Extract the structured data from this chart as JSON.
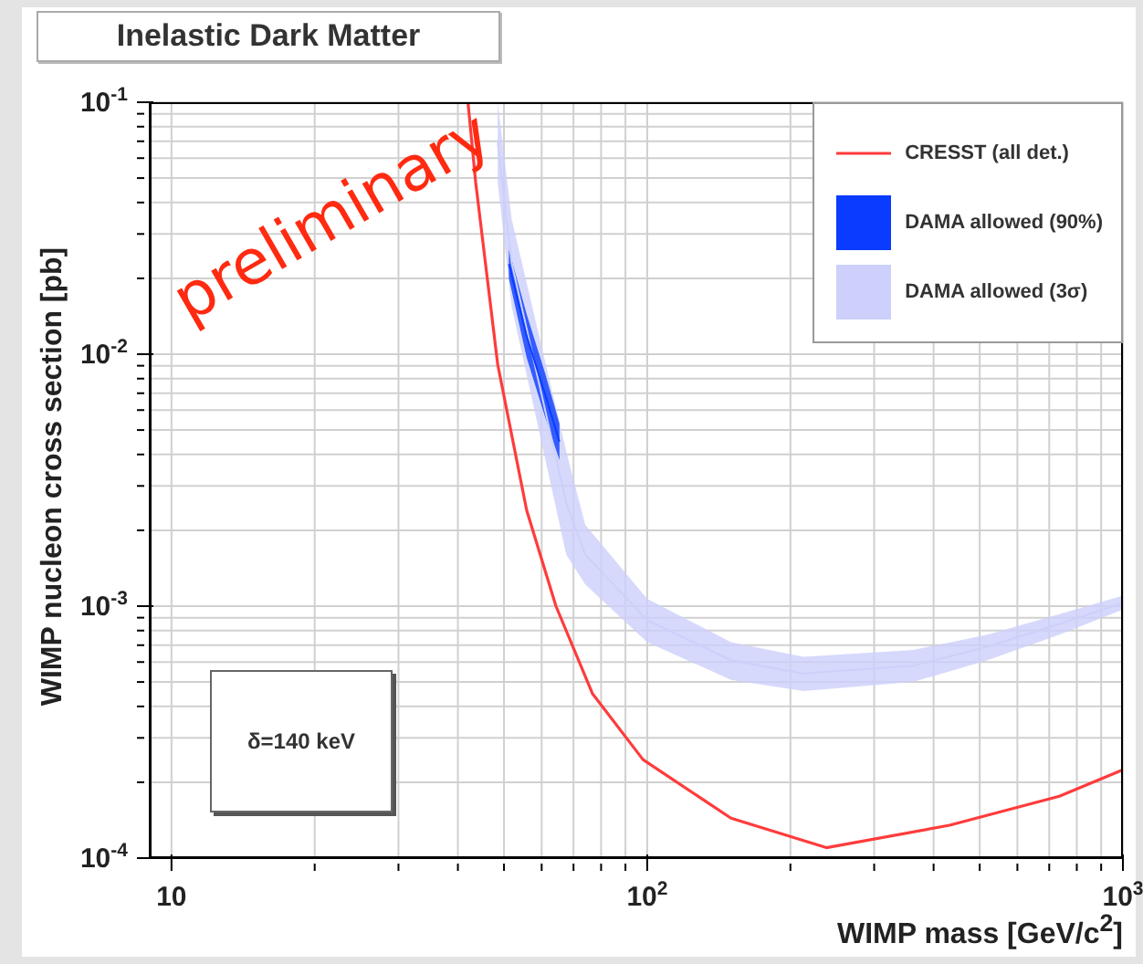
{
  "chart_data": {
    "type": "line",
    "title": "Inelastic Dark Matter",
    "xlabel": "WIMP mass [GeV/c$^{2}$]",
    "ylabel": "WIMP nucleon cross section [pb]",
    "log": "xy",
    "grid": true,
    "legend": "top right",
    "xlim": [
      9,
      1000
    ],
    "xticks": [
      10,
      {
        "value": 20,
        "label": null
      },
      {
        "value": 30,
        "label": null
      },
      {
        "value": 40,
        "label": null
      },
      {
        "value": 50,
        "label": null
      },
      {
        "value": 60,
        "label": null
      },
      {
        "value": 70,
        "label": null
      },
      {
        "value": 80,
        "label": null
      },
      {
        "value": 90,
        "label": null
      },
      {
        "value": 100,
        "label": "10$^{2}$"
      },
      {
        "value": 200,
        "label": null
      },
      {
        "value": 300,
        "label": null
      },
      {
        "value": 400,
        "label": null
      },
      {
        "value": 500,
        "label": null
      },
      {
        "value": 600,
        "label": null
      },
      {
        "value": 700,
        "label": null
      },
      {
        "value": 800,
        "label": null
      },
      {
        "value": 900,
        "label": null
      },
      {
        "value": 1000,
        "label": "10$^{3}$"
      }
    ],
    "ylim": [
      0.0001,
      0.1
    ],
    "yticks": [
      {
        "value": 0.0001,
        "label": "10$^{-4}$"
      },
      {
        "value": 0.0002,
        "label": null
      },
      {
        "value": 0.0003,
        "label": null
      },
      {
        "value": 0.0004,
        "label": null
      },
      {
        "value": 0.0005,
        "label": null
      },
      {
        "value": 0.0006,
        "label": null
      },
      {
        "value": 0.0007,
        "label": null
      },
      {
        "value": 0.0008,
        "label": null
      },
      {
        "value": 0.0009,
        "label": null
      },
      {
        "value": 0.001,
        "label": "10$^{-3}$"
      },
      {
        "value": 0.002,
        "label": null
      },
      {
        "value": 0.003,
        "label": null
      },
      {
        "value": 0.004,
        "label": null
      },
      {
        "value": 0.005,
        "label": null
      },
      {
        "value": 0.006,
        "label": null
      },
      {
        "value": 0.007,
        "label": null
      },
      {
        "value": 0.008,
        "label": null
      },
      {
        "value": 0.009,
        "label": null
      },
      {
        "value": 0.01,
        "label": "10$^{-2}$"
      },
      {
        "value": 0.02,
        "label": null
      },
      {
        "value": 0.03,
        "label": null
      },
      {
        "value": 0.04,
        "label": null
      },
      {
        "value": 0.05,
        "label": null
      },
      {
        "value": 0.06,
        "label": null
      },
      {
        "value": 0.07,
        "label": null
      },
      {
        "value": 0.08,
        "label": null
      },
      {
        "value": 0.09,
        "label": null
      },
      {
        "value": 0.1,
        "label": "10$^{-1}$"
      }
    ],
    "series": [
      {
        "name": "CRESST (all det.)",
        "color": "#ff3b3b",
        "x": [
          42,
          43.6,
          48.5,
          55.8,
          64.3,
          76.7,
          98,
          150,
          238,
          432,
          735,
          1000
        ],
        "values": [
          0.1,
          0.048,
          0.0091,
          0.0024,
          0.001,
          0.00045,
          0.000246,
          0.000144,
          0.00011,
          0.000135,
          0.000176,
          0.000224
        ]
      },
      {
        "name": "DAMA allowed (90%)",
        "type": "line",
        "color": "#0a3cff",
        "x": [
          51.2,
          55.8,
          60.9,
          65.4
        ],
        "values": [
          0.0228,
          0.0118,
          0.007,
          0.0045
        ],
        "lower": [
          0.02,
          0.0097,
          0.0057,
          0.0038
        ],
        "upper": [
          0.026,
          0.0144,
          0.0085,
          0.0053
        ]
      },
      {
        "name": "DAMA allowed (3σ)",
        "type": "line",
        "color": "#ccd0fa",
        "x": [
          48.5,
          51.9,
          67.6,
          74.1,
          100,
          150,
          213,
          362,
          519,
          735,
          1000
        ],
        "values": [
          0.069,
          0.023,
          0.00256,
          0.0016,
          0.00088,
          0.00061,
          0.00054,
          0.00058,
          0.00069,
          0.00085,
          0.00103
        ],
        "lower": [
          0.048,
          0.0154,
          0.0016,
          0.00122,
          0.00072,
          0.00051,
          0.00046,
          0.0005,
          0.00061,
          0.00077,
          0.00097
        ],
        "upper": [
          0.1,
          0.0343,
          0.0041,
          0.0021,
          0.00107,
          0.00072,
          0.00063,
          0.00067,
          0.00077,
          0.00093,
          0.0011
        ]
      }
    ],
    "annotations": [
      "preliminary",
      "δ=140 keV"
    ]
  }
}
